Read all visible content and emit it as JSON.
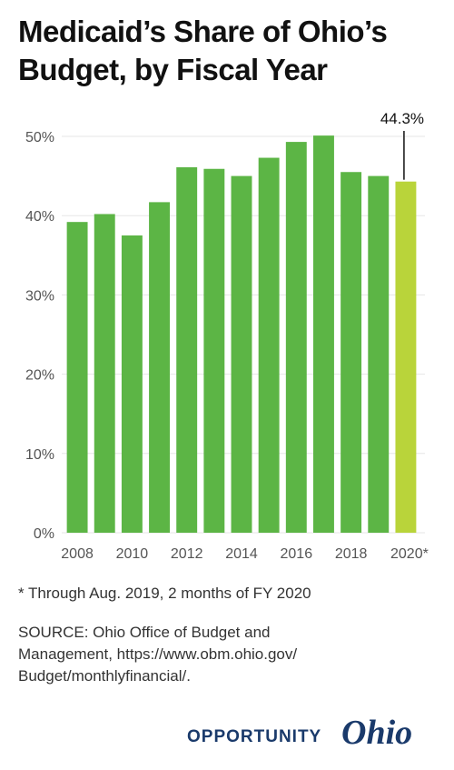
{
  "title": {
    "line1": "Medicaid’s Share of Ohio’s",
    "line2": "Budget, by Fiscal Year"
  },
  "chart_data": {
    "type": "bar",
    "categories": [
      "2008",
      "2009",
      "2010",
      "2011",
      "2012",
      "2013",
      "2014",
      "2015",
      "2016",
      "2017",
      "2018",
      "2019",
      "2020*"
    ],
    "x_tick_labels": [
      "2008",
      "2010",
      "2012",
      "2014",
      "2016",
      "2018",
      "2020*"
    ],
    "values": [
      39.2,
      40.2,
      37.5,
      41.7,
      46.1,
      45.9,
      45.0,
      47.3,
      49.3,
      50.1,
      45.5,
      45.0,
      44.3
    ],
    "ylim": [
      0,
      50
    ],
    "y_ticks": [
      0,
      10,
      20,
      30,
      40,
      50
    ],
    "y_tick_labels": [
      "0%",
      "10%",
      "20%",
      "30%",
      "40%",
      "50%"
    ],
    "grid": true,
    "colors": {
      "bar": "#5cb545",
      "highlight": "#b9d43a",
      "grid": "#e6e6e6"
    },
    "highlight_index": 12,
    "annotation": {
      "text": "44.3%",
      "category": "2020*"
    },
    "xlabel": "",
    "ylabel": ""
  },
  "footnote": "* Through Aug. 2019, 2 months of FY 2020",
  "source": {
    "line1": "SOURCE: Ohio Office of Budget and",
    "line2": "Management, https://www.obm.ohio.gov/",
    "line3": "Budget/monthlyfinancial/."
  },
  "logo": {
    "word1": "OPPORTUNITY",
    "word2": "Ohio",
    "color": "#1a3a6b"
  }
}
